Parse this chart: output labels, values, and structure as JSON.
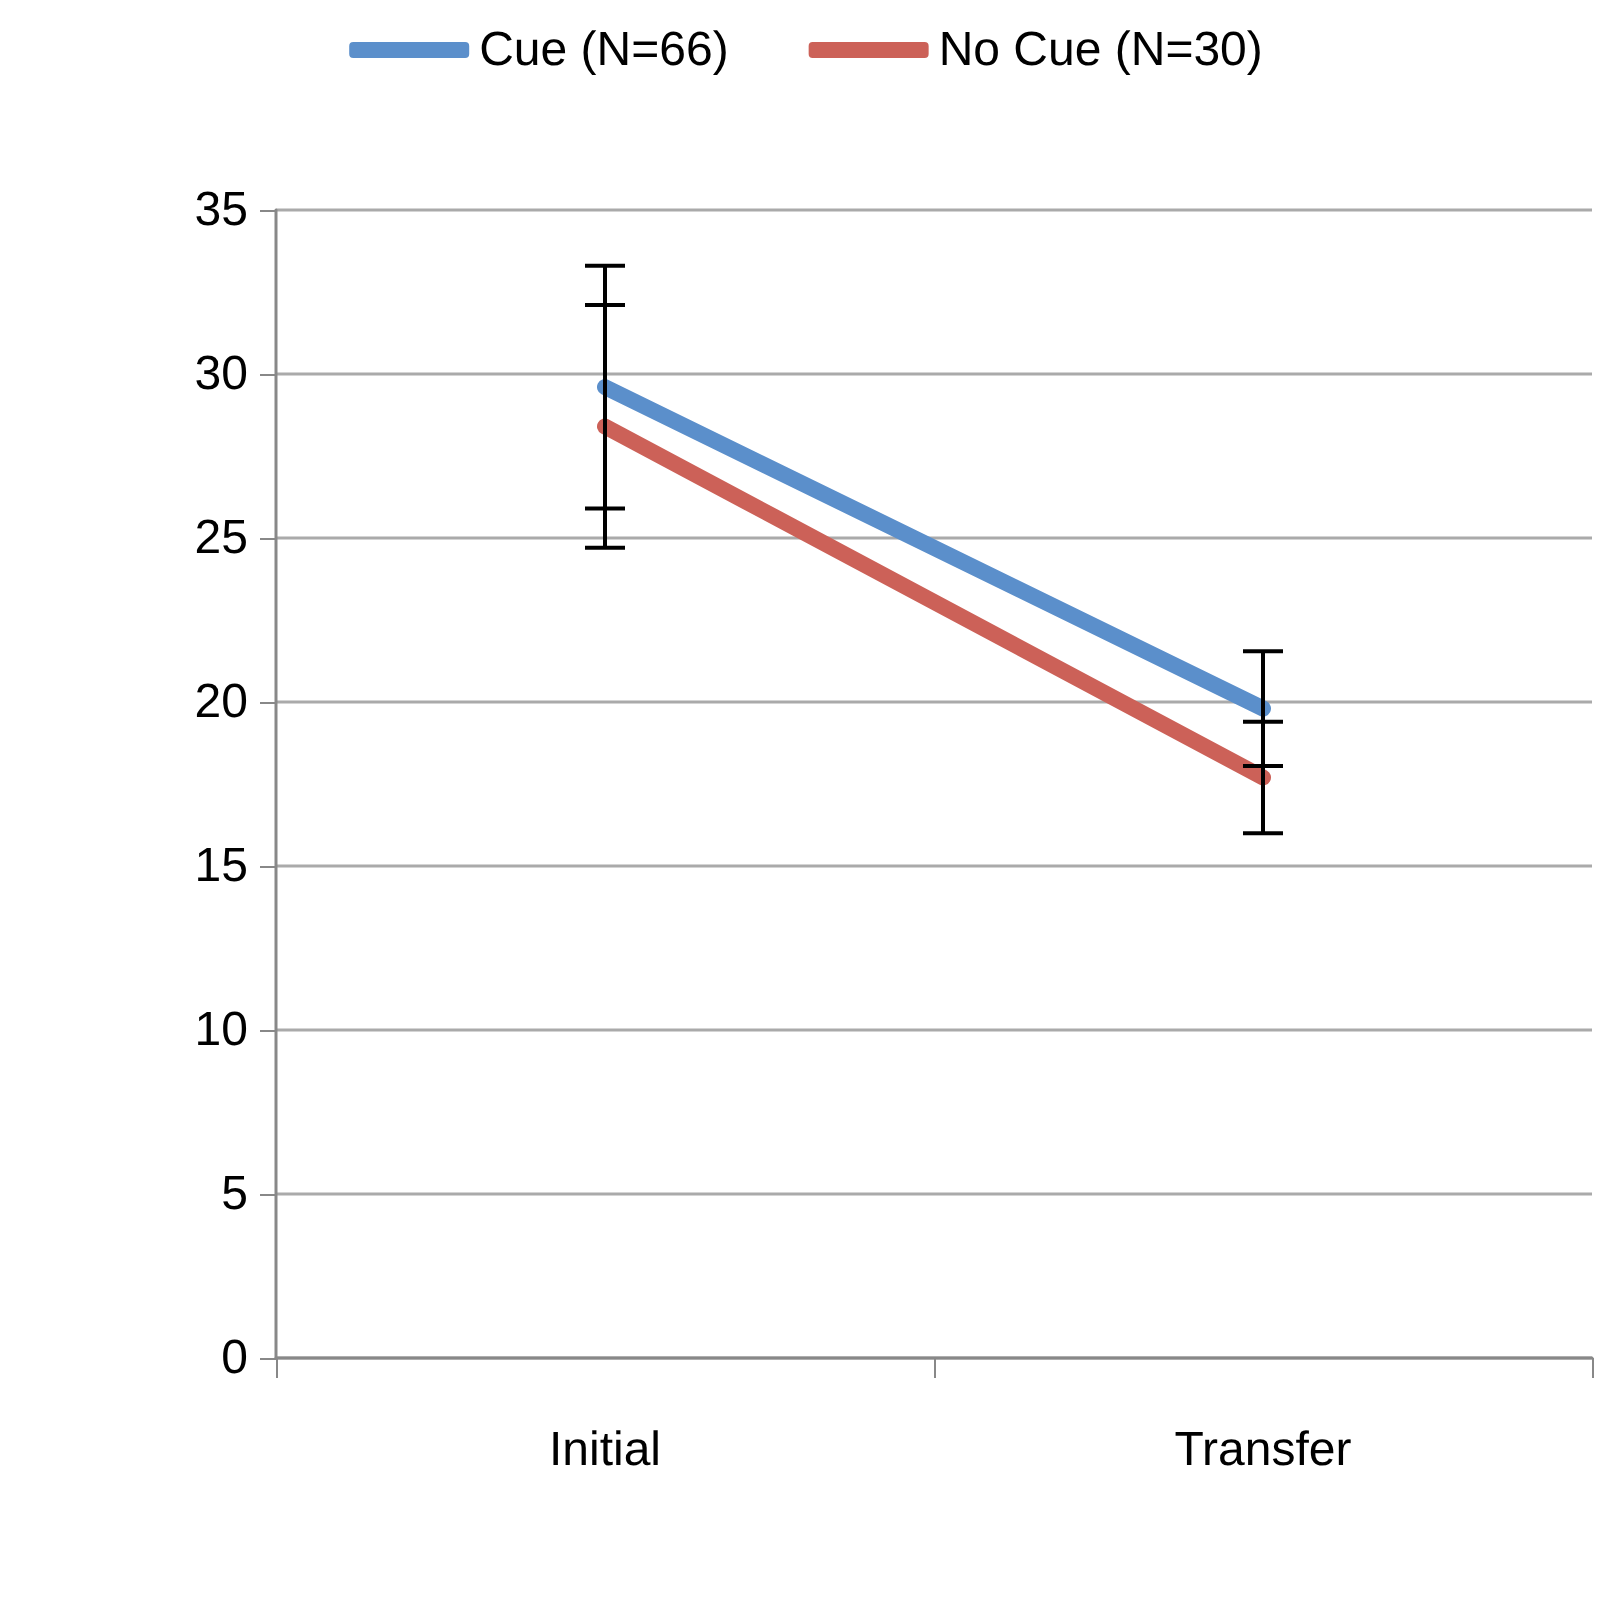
{
  "chart_data": {
    "type": "line",
    "categories": [
      "Initial",
      "Transfer"
    ],
    "series": [
      {
        "name": "Cue (N=66)",
        "color": "#5b8fcb",
        "values": [
          29.6,
          19.8
        ],
        "errors": [
          3.7,
          1.75
        ]
      },
      {
        "name": "No Cue (N=30)",
        "color": "#cc6158",
        "values": [
          28.4,
          17.7
        ],
        "errors": [
          3.7,
          1.7
        ]
      }
    ],
    "ylim": [
      0,
      35
    ],
    "yticks": [
      0,
      5,
      10,
      15,
      20,
      25,
      30,
      35
    ],
    "grid": "y",
    "legend": "top",
    "line_style": "solid"
  }
}
